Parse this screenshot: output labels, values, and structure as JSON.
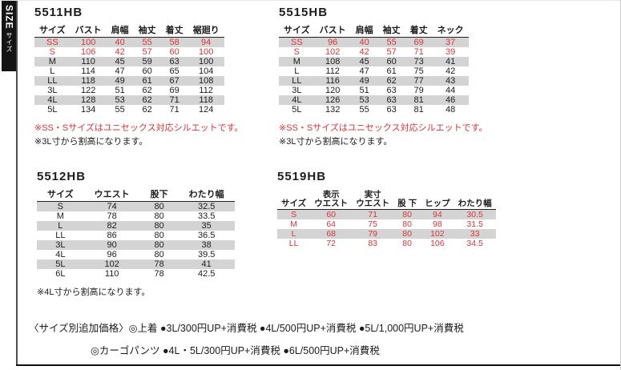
{
  "size_tab": {
    "en": "SIZE",
    "ja": "サイズ"
  },
  "colors": {
    "red": "#d3363c",
    "band_gray": "#d4d4d4",
    "tab_black": "#141414"
  },
  "tables": [
    {
      "title": "5511HB",
      "columns": [
        "サイズ",
        "バスト",
        "肩幅",
        "袖丈",
        "着丈",
        "裾廻り"
      ],
      "rows": [
        {
          "cells": [
            "SS",
            "100",
            "40",
            "55",
            "58",
            "94"
          ],
          "red": true
        },
        {
          "cells": [
            "S",
            "106",
            "42",
            "57",
            "60",
            "100"
          ],
          "red": true
        },
        {
          "cells": [
            "M",
            "110",
            "45",
            "59",
            "63",
            "100"
          ],
          "red": false
        },
        {
          "cells": [
            "L",
            "114",
            "47",
            "60",
            "65",
            "104"
          ],
          "red": false
        },
        {
          "cells": [
            "LL",
            "118",
            "49",
            "61",
            "67",
            "108"
          ],
          "red": false
        },
        {
          "cells": [
            "3L",
            "122",
            "51",
            "62",
            "69",
            "112"
          ],
          "red": false
        },
        {
          "cells": [
            "4L",
            "128",
            "53",
            "62",
            "71",
            "118"
          ],
          "red": false
        },
        {
          "cells": [
            "5L",
            "134",
            "55",
            "62",
            "71",
            "124"
          ],
          "red": false
        }
      ],
      "notes": [
        {
          "text": "※SS・Sサイズはユニセックス対応シルエットです。",
          "color": "red"
        },
        {
          "text": "※3L寸から割高になります。",
          "color": "black"
        }
      ]
    },
    {
      "title": "5515HB",
      "columns": [
        "サイズ",
        "バスト",
        "肩幅",
        "袖丈",
        "着丈",
        "ネック"
      ],
      "rows": [
        {
          "cells": [
            "SS",
            "96",
            "40",
            "55",
            "69",
            "37"
          ],
          "red": true
        },
        {
          "cells": [
            "S",
            "102",
            "42",
            "57",
            "71",
            "39"
          ],
          "red": true
        },
        {
          "cells": [
            "M",
            "108",
            "45",
            "60",
            "73",
            "41"
          ],
          "red": false
        },
        {
          "cells": [
            "L",
            "112",
            "47",
            "61",
            "75",
            "42"
          ],
          "red": false
        },
        {
          "cells": [
            "LL",
            "116",
            "49",
            "62",
            "77",
            "43"
          ],
          "red": false
        },
        {
          "cells": [
            "3L",
            "120",
            "51",
            "63",
            "79",
            "44"
          ],
          "red": false
        },
        {
          "cells": [
            "4L",
            "126",
            "53",
            "63",
            "81",
            "46"
          ],
          "red": false
        },
        {
          "cells": [
            "5L",
            "132",
            "55",
            "63",
            "81",
            "48"
          ],
          "red": false
        }
      ],
      "notes": [
        {
          "text": "※SS・Sサイズはユニセックス対応シルエットです。",
          "color": "red"
        },
        {
          "text": "※3L寸から割高になります。",
          "color": "black"
        }
      ]
    },
    {
      "title": "5512HB",
      "columns": [
        "サイズ",
        "ウエスト",
        "股下",
        "わたり幅"
      ],
      "rows": [
        {
          "cells": [
            "S",
            "74",
            "80",
            "32.5"
          ],
          "red": false
        },
        {
          "cells": [
            "M",
            "78",
            "80",
            "33.5"
          ],
          "red": false
        },
        {
          "cells": [
            "L",
            "82",
            "80",
            "35"
          ],
          "red": false
        },
        {
          "cells": [
            "LL",
            "86",
            "80",
            "36.5"
          ],
          "red": false
        },
        {
          "cells": [
            "3L",
            "90",
            "80",
            "38"
          ],
          "red": false
        },
        {
          "cells": [
            "4L",
            "96",
            "80",
            "39.5"
          ],
          "red": false
        },
        {
          "cells": [
            "5L",
            "102",
            "78",
            "41"
          ],
          "red": false
        },
        {
          "cells": [
            "6L",
            "110",
            "78",
            "42.5"
          ],
          "red": false
        }
      ],
      "notes": [
        {
          "text": "※4L寸から割高になります。",
          "color": "black"
        }
      ]
    },
    {
      "title": "5519HB",
      "columns": [
        "サイズ",
        "表示\nウエスト",
        "実寸\nウエスト",
        "股 下",
        "ヒップ",
        "わたり幅"
      ],
      "rows": [
        {
          "cells": [
            "S",
            "60",
            "71",
            "80",
            "94",
            "30.5"
          ],
          "red": true
        },
        {
          "cells": [
            "M",
            "64",
            "75",
            "80",
            "98",
            "31.5"
          ],
          "red": true
        },
        {
          "cells": [
            "L",
            "68",
            "79",
            "80",
            "102",
            "33"
          ],
          "red": true
        },
        {
          "cells": [
            "LL",
            "72",
            "83",
            "80",
            "106",
            "34.5"
          ],
          "red": true
        }
      ],
      "notes": []
    }
  ],
  "footer": {
    "lines": [
      "〈サイズ別追加価格〉◎上着 ●3L/300円UP+消費税 ●4L/500円UP+消費税 ●5L/1,000円UP+消費税",
      "◎カーゴパンツ ●4L・5L/300円UP+消費税 ●6L/500円UP+消費税"
    ]
  }
}
